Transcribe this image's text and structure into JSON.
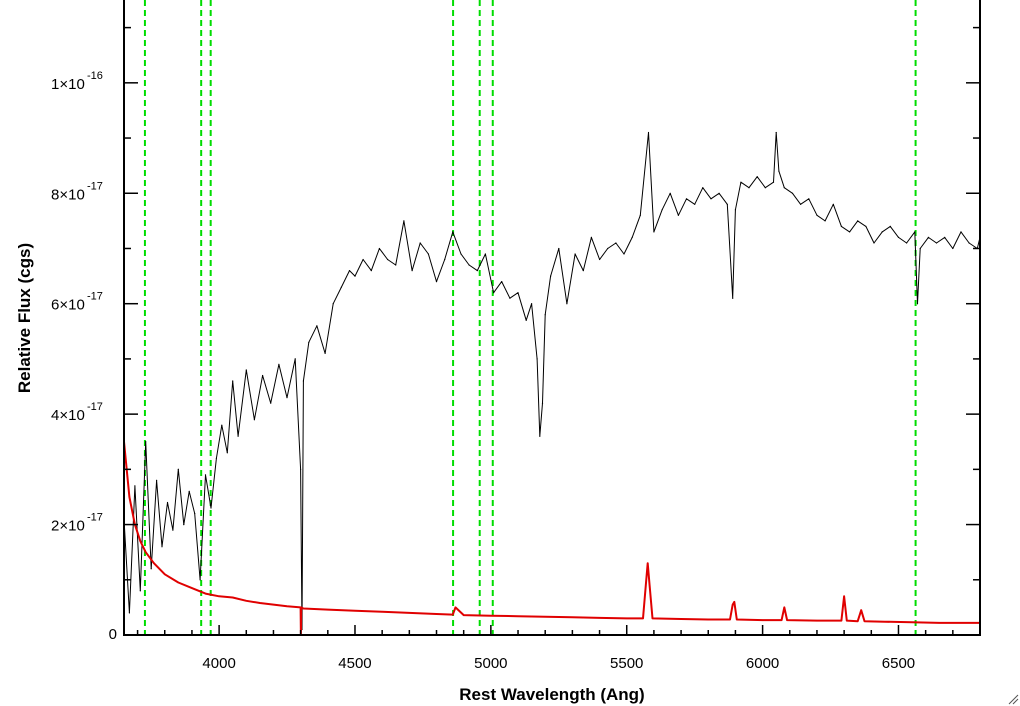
{
  "chart_data": {
    "type": "line",
    "title": "",
    "xlabel": "Rest Wavelength (Ang)",
    "ylabel": "Relative Flux (cgs)",
    "xlim": [
      3650,
      6800
    ],
    "ylim": [
      0,
      1.15e-16
    ],
    "x_ticks": [
      4000,
      4500,
      5000,
      5500,
      6000,
      6500
    ],
    "x_tick_labels": [
      "4000",
      "4500",
      "5000",
      "5500",
      "6000",
      "6500"
    ],
    "y_ticks": [
      0,
      2e-17,
      4e-17,
      6e-17,
      8e-17,
      1e-16
    ],
    "y_tick_labels": [
      {
        "mantissa": "0",
        "exponent": ""
      },
      {
        "mantissa": "2×10",
        "exponent": "-17"
      },
      {
        "mantissa": "4×10",
        "exponent": "-17"
      },
      {
        "mantissa": "6×10",
        "exponent": "-17"
      },
      {
        "mantissa": "8×10",
        "exponent": "-17"
      },
      {
        "mantissa": "1×10",
        "exponent": "-16"
      }
    ],
    "grid": false,
    "vlines": {
      "color": "#00dd00",
      "style": "dashed",
      "x": [
        3727,
        3934,
        3969,
        4861,
        4959,
        5007,
        6563
      ]
    },
    "series": [
      {
        "color": "#000000",
        "x": [
          3650,
          3670,
          3690,
          3710,
          3730,
          3750,
          3770,
          3790,
          3810,
          3830,
          3850,
          3870,
          3890,
          3910,
          3930,
          3950,
          3970,
          3990,
          4010,
          4030,
          4050,
          4070,
          4100,
          4130,
          4160,
          4190,
          4220,
          4250,
          4280,
          4300,
          4305,
          4310,
          4330,
          4360,
          4390,
          4420,
          4450,
          4480,
          4500,
          4530,
          4560,
          4590,
          4620,
          4650,
          4680,
          4710,
          4740,
          4770,
          4800,
          4830,
          4860,
          4890,
          4920,
          4950,
          4980,
          5010,
          5040,
          5070,
          5100,
          5130,
          5150,
          5170,
          5180,
          5190,
          5200,
          5220,
          5250,
          5280,
          5310,
          5340,
          5370,
          5400,
          5430,
          5460,
          5490,
          5520,
          5550,
          5580,
          5600,
          5630,
          5660,
          5690,
          5720,
          5750,
          5780,
          5810,
          5840,
          5870,
          5890,
          5900,
          5920,
          5950,
          5980,
          6010,
          6040,
          6050,
          6060,
          6080,
          6110,
          6140,
          6170,
          6200,
          6230,
          6260,
          6290,
          6320,
          6350,
          6380,
          6410,
          6440,
          6470,
          6500,
          6530,
          6560,
          6570,
          6580,
          6610,
          6640,
          6670,
          6700,
          6730,
          6760,
          6790,
          6800
        ],
        "y": [
          2.1e-17,
          4e-18,
          2.7e-17,
          8e-18,
          3.5e-17,
          1.2e-17,
          2.8e-17,
          1.6e-17,
          2.4e-17,
          1.9e-17,
          3e-17,
          2e-17,
          2.6e-17,
          2.2e-17,
          1e-17,
          2.9e-17,
          2.3e-17,
          3.2e-17,
          3.8e-17,
          3.3e-17,
          4.6e-17,
          3.6e-17,
          4.8e-17,
          3.9e-17,
          4.7e-17,
          4.2e-17,
          4.9e-17,
          4.3e-17,
          5e-17,
          3e-17,
          1e-18,
          4.6e-17,
          5.3e-17,
          5.6e-17,
          5.1e-17,
          6e-17,
          6.3e-17,
          6.6e-17,
          6.5e-17,
          6.8e-17,
          6.6e-17,
          7e-17,
          6.8e-17,
          6.7e-17,
          7.5e-17,
          6.6e-17,
          7.1e-17,
          6.9e-17,
          6.4e-17,
          6.8e-17,
          7.3e-17,
          6.9e-17,
          6.7e-17,
          6.6e-17,
          6.9e-17,
          6.2e-17,
          6.4e-17,
          6.1e-17,
          6.2e-17,
          5.7e-17,
          6e-17,
          5e-17,
          3.6e-17,
          4.2e-17,
          5.8e-17,
          6.5e-17,
          7e-17,
          6e-17,
          6.9e-17,
          6.6e-17,
          7.2e-17,
          6.8e-17,
          7e-17,
          7.1e-17,
          6.9e-17,
          7.2e-17,
          7.6e-17,
          9.1e-17,
          7.3e-17,
          7.7e-17,
          8e-17,
          7.6e-17,
          7.9e-17,
          7.8e-17,
          8.1e-17,
          7.9e-17,
          8e-17,
          7.8e-17,
          6.1e-17,
          7.7e-17,
          8.2e-17,
          8.1e-17,
          8.3e-17,
          8.1e-17,
          8.2e-17,
          9.1e-17,
          8.4e-17,
          8.1e-17,
          8e-17,
          7.8e-17,
          7.9e-17,
          7.6e-17,
          7.5e-17,
          7.8e-17,
          7.4e-17,
          7.3e-17,
          7.5e-17,
          7.4e-17,
          7.1e-17,
          7.3e-17,
          7.4e-17,
          7.2e-17,
          7.1e-17,
          7.3e-17,
          6e-17,
          7e-17,
          7.2e-17,
          7.1e-17,
          7.2e-17,
          7e-17,
          7.3e-17,
          7.1e-17,
          7e-17,
          7.2e-17
        ]
      },
      {
        "color": "#e00000",
        "x": [
          3650,
          3670,
          3690,
          3710,
          3730,
          3760,
          3800,
          3850,
          3900,
          3950,
          4000,
          4050,
          4100,
          4150,
          4200,
          4250,
          4300,
          4301,
          4302,
          4310,
          4400,
          4500,
          4600,
          4700,
          4800,
          4860,
          4870,
          4900,
          5000,
          5100,
          5200,
          5300,
          5400,
          5500,
          5560,
          5570,
          5577,
          5584,
          5595,
          5700,
          5800,
          5880,
          5890,
          5896,
          5905,
          6000,
          6070,
          6080,
          6090,
          6200,
          6290,
          6300,
          6310,
          6350,
          6363,
          6375,
          6450,
          6550,
          6650,
          6750,
          6800
        ],
        "y": [
          3.5e-17,
          2.5e-17,
          2e-17,
          1.7e-17,
          1.5e-17,
          1.3e-17,
          1.1e-17,
          9.5e-18,
          8.5e-18,
          7.5e-18,
          7e-18,
          6.8e-18,
          6.2e-18,
          5.8e-18,
          5.5e-18,
          5.2e-18,
          5e-18,
          0.0,
          5e-18,
          4.8e-18,
          4.6e-18,
          4.4e-18,
          4.2e-18,
          4e-18,
          3.8e-18,
          3.7e-18,
          5e-18,
          3.6e-18,
          3.5e-18,
          3.4e-18,
          3.3e-18,
          3.2e-18,
          3.1e-18,
          3e-18,
          3e-18,
          9e-18,
          1.3e-17,
          9e-18,
          3e-18,
          2.9e-18,
          2.8e-18,
          2.8e-18,
          5.5e-18,
          6e-18,
          2.8e-18,
          2.7e-18,
          2.7e-18,
          5e-18,
          2.7e-18,
          2.6e-18,
          2.6e-18,
          7e-18,
          2.6e-18,
          2.5e-18,
          4.5e-18,
          2.5e-18,
          2.4e-18,
          2.3e-18,
          2.2e-18,
          2.2e-18,
          2.2e-18
        ]
      }
    ]
  }
}
